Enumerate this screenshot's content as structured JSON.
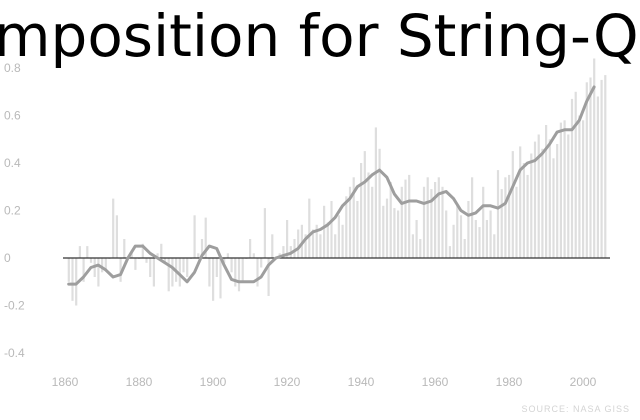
{
  "header": {
    "title": "mposition for String-Qua"
  },
  "footer": {
    "source": "SOURCE: NASA GISS"
  },
  "chart_data": {
    "type": "bar",
    "title": "mposition for String-Qua",
    "xlabel": "",
    "ylabel": "",
    "xlim": [
      1858,
      2012
    ],
    "ylim": [
      -0.4,
      0.8
    ],
    "x_ticks": [
      1860,
      1880,
      1900,
      1920,
      1940,
      1960,
      1980,
      2000
    ],
    "y_ticks": [
      -0.4,
      -0.2,
      0,
      0.2,
      0.4,
      0.6,
      0.8
    ],
    "y_tick_labels": [
      "-0.4",
      "-0.2",
      "0",
      "0.2",
      "0.4",
      "0.6",
      "0.8"
    ],
    "grid": false,
    "colors": {
      "bars": "#dedede",
      "smooth_line": "#9e9e9e",
      "zero_line": "#333333"
    },
    "annual_anomaly": {
      "x": [
        1861,
        1862,
        1863,
        1864,
        1865,
        1866,
        1867,
        1868,
        1869,
        1870,
        1871,
        1872,
        1873,
        1874,
        1875,
        1876,
        1877,
        1878,
        1879,
        1880,
        1881,
        1882,
        1883,
        1884,
        1885,
        1886,
        1887,
        1888,
        1889,
        1890,
        1891,
        1892,
        1893,
        1894,
        1895,
        1896,
        1897,
        1898,
        1899,
        1900,
        1901,
        1902,
        1903,
        1904,
        1905,
        1906,
        1907,
        1908,
        1909,
        1910,
        1911,
        1912,
        1913,
        1914,
        1915,
        1916,
        1917,
        1918,
        1919,
        1920,
        1921,
        1922,
        1923,
        1924,
        1925,
        1926,
        1927,
        1928,
        1929,
        1930,
        1931,
        1932,
        1933,
        1934,
        1935,
        1936,
        1937,
        1938,
        1939,
        1940,
        1941,
        1942,
        1943,
        1944,
        1945,
        1946,
        1947,
        1948,
        1949,
        1950,
        1951,
        1952,
        1953,
        1954,
        1955,
        1956,
        1957,
        1958,
        1959,
        1960,
        1961,
        1962,
        1963,
        1964,
        1965,
        1966,
        1967,
        1968,
        1969,
        1970,
        1971,
        1972,
        1973,
        1974,
        1975,
        1976,
        1977,
        1978,
        1979,
        1980,
        1981,
        1982,
        1983,
        1984,
        1985,
        1986,
        1987,
        1988,
        1989,
        1990,
        1991,
        1992,
        1993,
        1994,
        1995,
        1996,
        1997,
        1998,
        1999,
        2000,
        2001,
        2002,
        2003,
        2004,
        2005,
        2006
      ],
      "y": [
        -0.1,
        -0.18,
        -0.2,
        0.05,
        -0.1,
        0.05,
        -0.02,
        -0.08,
        -0.12,
        -0.06,
        -0.05,
        0.0,
        0.25,
        0.18,
        -0.1,
        0.08,
        0.0,
        0.02,
        -0.05,
        0.0,
        0.06,
        -0.02,
        -0.08,
        -0.12,
        0.02,
        0.06,
        -0.02,
        -0.14,
        -0.12,
        -0.1,
        -0.12,
        -0.06,
        -0.08,
        0.0,
        0.18,
        0.02,
        0.08,
        0.17,
        -0.12,
        -0.18,
        -0.08,
        -0.17,
        -0.02,
        0.02,
        -0.06,
        -0.12,
        -0.14,
        -0.1,
        0.0,
        0.08,
        0.02,
        -0.12,
        -0.04,
        0.21,
        -0.16,
        0.1,
        0.0,
        0.02,
        0.05,
        0.16,
        0.05,
        0.08,
        0.12,
        0.14,
        0.1,
        0.25,
        0.12,
        0.14,
        0.1,
        0.22,
        0.15,
        0.24,
        0.1,
        0.18,
        0.14,
        0.26,
        0.3,
        0.34,
        0.24,
        0.4,
        0.45,
        0.36,
        0.3,
        0.55,
        0.46,
        0.22,
        0.25,
        0.32,
        0.21,
        0.2,
        0.3,
        0.33,
        0.35,
        0.1,
        0.16,
        0.08,
        0.3,
        0.34,
        0.29,
        0.32,
        0.34,
        0.3,
        0.2,
        0.05,
        0.14,
        0.22,
        0.18,
        0.08,
        0.24,
        0.34,
        0.16,
        0.13,
        0.3,
        0.16,
        0.2,
        0.1,
        0.37,
        0.29,
        0.34,
        0.35,
        0.45,
        0.3,
        0.47,
        0.4,
        0.35,
        0.44,
        0.49,
        0.52,
        0.46,
        0.56,
        0.5,
        0.42,
        0.48,
        0.57,
        0.58,
        0.52,
        0.67,
        0.7,
        0.6,
        0.58,
        0.74,
        0.76,
        0.84,
        0.68,
        0.75,
        0.77
      ]
    },
    "smoothed": {
      "x": [
        1861,
        1863,
        1865,
        1867,
        1869,
        1871,
        1873,
        1875,
        1877,
        1879,
        1881,
        1883,
        1885,
        1887,
        1889,
        1891,
        1893,
        1895,
        1897,
        1899,
        1901,
        1903,
        1905,
        1907,
        1909,
        1911,
        1913,
        1915,
        1917,
        1919,
        1921,
        1923,
        1925,
        1927,
        1929,
        1931,
        1933,
        1935,
        1937,
        1939,
        1941,
        1943,
        1945,
        1947,
        1949,
        1951,
        1953,
        1955,
        1957,
        1959,
        1961,
        1963,
        1965,
        1967,
        1969,
        1971,
        1973,
        1975,
        1977,
        1979,
        1981,
        1983,
        1985,
        1987,
        1989,
        1991,
        1993,
        1995,
        1997,
        1999,
        2001,
        2003
      ],
      "y": [
        -0.11,
        -0.11,
        -0.08,
        -0.04,
        -0.03,
        -0.05,
        -0.08,
        -0.07,
        0.0,
        0.05,
        0.05,
        0.02,
        0.0,
        -0.02,
        -0.04,
        -0.07,
        -0.1,
        -0.06,
        0.01,
        0.05,
        0.04,
        -0.03,
        -0.09,
        -0.1,
        -0.1,
        -0.1,
        -0.08,
        -0.03,
        0.0,
        0.01,
        0.02,
        0.04,
        0.08,
        0.11,
        0.12,
        0.14,
        0.17,
        0.22,
        0.25,
        0.3,
        0.32,
        0.35,
        0.37,
        0.34,
        0.27,
        0.23,
        0.24,
        0.24,
        0.23,
        0.24,
        0.27,
        0.28,
        0.25,
        0.2,
        0.18,
        0.19,
        0.22,
        0.22,
        0.21,
        0.23,
        0.3,
        0.37,
        0.4,
        0.41,
        0.44,
        0.48,
        0.53,
        0.54,
        0.54,
        0.58,
        0.66,
        0.72
      ]
    }
  }
}
